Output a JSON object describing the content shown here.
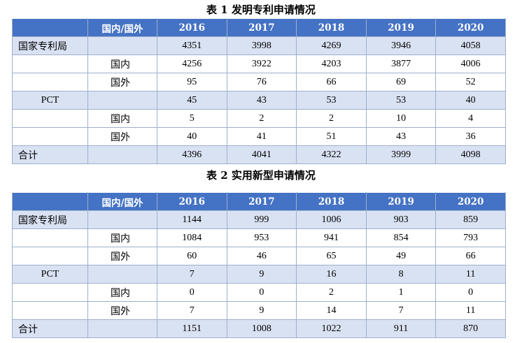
{
  "tables": [
    {
      "caption": "表 1  发明专利申请情况",
      "header": [
        "",
        "国内/国外",
        "2016",
        "2017",
        "2018",
        "2019",
        "2020"
      ],
      "rows": [
        {
          "label": "国家专利局",
          "sub": "",
          "values": [
            "4351",
            "3998",
            "4269",
            "3946",
            "4058"
          ]
        },
        {
          "label": "",
          "sub": "国内",
          "values": [
            "4256",
            "3922",
            "4203",
            "3877",
            "4006"
          ]
        },
        {
          "label": "",
          "sub": "国外",
          "values": [
            "95",
            "76",
            "66",
            "69",
            "52"
          ]
        },
        {
          "label": "PCT",
          "sub": "",
          "values": [
            "45",
            "43",
            "53",
            "53",
            "40"
          ]
        },
        {
          "label": "",
          "sub": "国内",
          "values": [
            "5",
            "2",
            "2",
            "10",
            "4"
          ]
        },
        {
          "label": "",
          "sub": "国外",
          "values": [
            "40",
            "41",
            "51",
            "43",
            "36"
          ]
        },
        {
          "label": "合计",
          "sub": "",
          "values": [
            "4396",
            "4041",
            "4322",
            "3999",
            "4098"
          ]
        }
      ]
    },
    {
      "caption": "表 2  实用新型申请情况",
      "header": [
        "",
        "国内/国外",
        "2016",
        "2017",
        "2018",
        "2019",
        "2020"
      ],
      "rows": [
        {
          "label": "国家专利局",
          "sub": "",
          "values": [
            "1144",
            "999",
            "1006",
            "903",
            "859"
          ]
        },
        {
          "label": "",
          "sub": "国内",
          "values": [
            "1084",
            "953",
            "941",
            "854",
            "793"
          ]
        },
        {
          "label": "",
          "sub": "国外",
          "values": [
            "60",
            "46",
            "65",
            "49",
            "66"
          ]
        },
        {
          "label": "PCT",
          "sub": "",
          "values": [
            "7",
            "9",
            "16",
            "8",
            "11"
          ]
        },
        {
          "label": "",
          "sub": "国内",
          "values": [
            "0",
            "0",
            "2",
            "1",
            "0"
          ]
        },
        {
          "label": "",
          "sub": "国外",
          "values": [
            "7",
            "9",
            "14",
            "7",
            "11"
          ]
        },
        {
          "label": "合计",
          "sub": "",
          "values": [
            "1151",
            "1008",
            "1022",
            "911",
            "870"
          ]
        }
      ]
    }
  ],
  "colors": {
    "header_bg": "#4472c4",
    "shade_bg": "#d9e2f3",
    "border": "#9db0cc"
  }
}
